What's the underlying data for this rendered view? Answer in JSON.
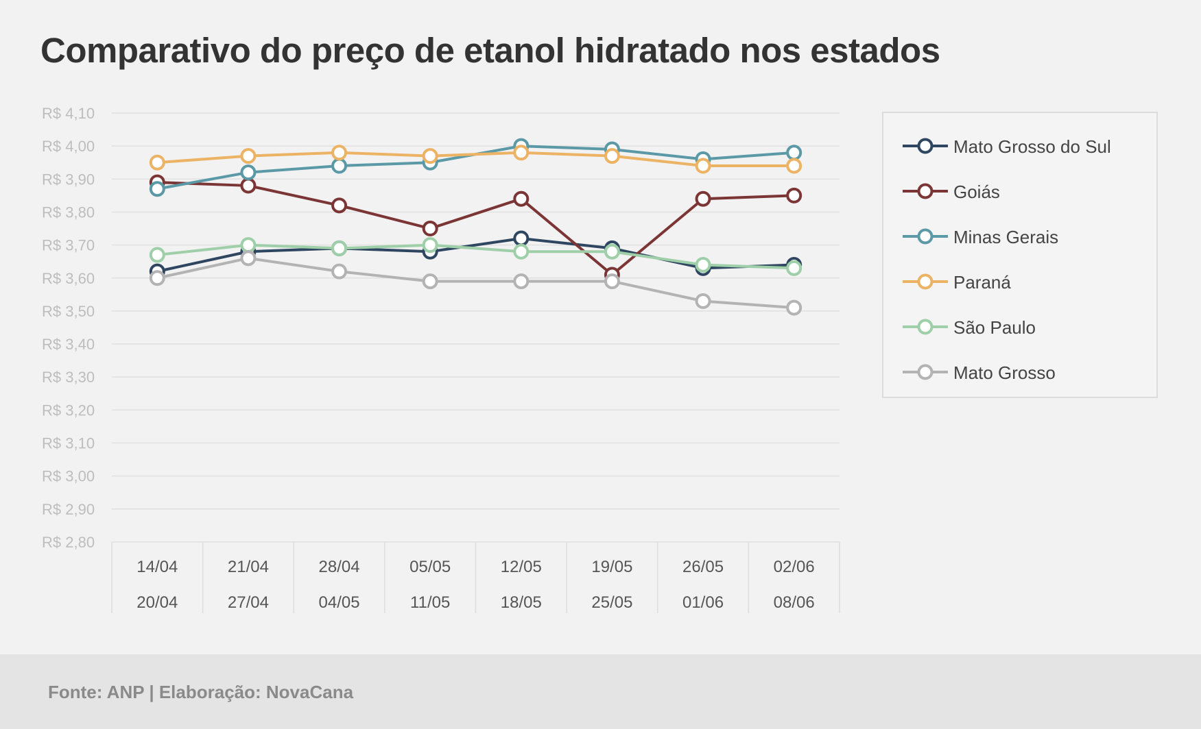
{
  "chart_data": {
    "type": "line",
    "title": "Comparativo do preço de etanol hidratado nos estados",
    "xlabel": "",
    "ylabel": "",
    "ylim": [
      2.8,
      4.1
    ],
    "yticks": [
      "R$ 4,10",
      "R$ 4,00",
      "R$ 3,90",
      "R$ 3,80",
      "R$ 3,70",
      "R$ 3,60",
      "R$ 3,50",
      "R$ 3,40",
      "R$ 3,30",
      "R$ 3,20",
      "R$ 3,10",
      "R$ 3,00",
      "R$ 2,90",
      "R$ 2,80"
    ],
    "categories": [
      {
        "start": "14/04",
        "end": "20/04"
      },
      {
        "start": "21/04",
        "end": "27/04"
      },
      {
        "start": "28/04",
        "end": "04/05"
      },
      {
        "start": "05/05",
        "end": "11/05"
      },
      {
        "start": "12/05",
        "end": "18/05"
      },
      {
        "start": "19/05",
        "end": "25/05"
      },
      {
        "start": "26/05",
        "end": "01/06"
      },
      {
        "start": "02/06",
        "end": "08/06"
      }
    ],
    "series": [
      {
        "name": "Mato Grosso do Sul",
        "color": "#2f4661",
        "values": [
          3.62,
          3.68,
          3.69,
          3.68,
          3.72,
          3.69,
          3.63,
          3.64
        ]
      },
      {
        "name": "Goiás",
        "color": "#7b3535",
        "values": [
          3.89,
          3.88,
          3.82,
          3.75,
          3.84,
          3.61,
          3.84,
          3.85
        ]
      },
      {
        "name": "Minas Gerais",
        "color": "#5b99a6",
        "values": [
          3.87,
          3.92,
          3.94,
          3.95,
          4.0,
          3.99,
          3.96,
          3.98
        ]
      },
      {
        "name": "Paraná",
        "color": "#ebb363",
        "values": [
          3.95,
          3.97,
          3.98,
          3.97,
          3.98,
          3.97,
          3.94,
          3.94
        ]
      },
      {
        "name": "São Paulo",
        "color": "#9fcfa8",
        "values": [
          3.67,
          3.7,
          3.69,
          3.7,
          3.68,
          3.68,
          3.64,
          3.63
        ]
      },
      {
        "name": "Mato Grosso",
        "color": "#b3b3b3",
        "values": [
          3.6,
          3.66,
          3.62,
          3.59,
          3.59,
          3.59,
          3.53,
          3.51
        ]
      }
    ],
    "grid": true,
    "legend": "right"
  },
  "source": "Fonte: ANP | Elaboração: NovaCana"
}
